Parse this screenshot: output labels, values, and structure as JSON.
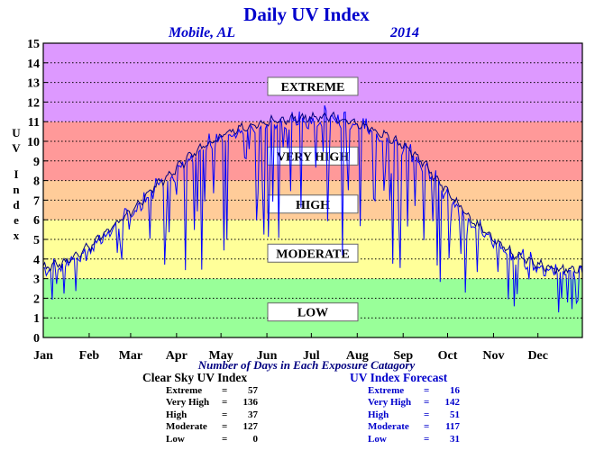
{
  "chart_data": {
    "type": "line",
    "title": "Daily UV Index",
    "location": "Mobile, AL",
    "year": "2014",
    "ylabel": "UV Index",
    "xlabel": "Number of Days in Each Exposure Catagory",
    "ylim": [
      0,
      15
    ],
    "yticks": [
      0,
      1,
      2,
      3,
      4,
      5,
      6,
      7,
      8,
      9,
      10,
      11,
      12,
      13,
      14,
      15
    ],
    "xlim": [
      1,
      365
    ],
    "x_ticks": [
      {
        "label": "Jan",
        "day": 1
      },
      {
        "label": "Feb",
        "day": 32
      },
      {
        "label": "Mar",
        "day": 60
      },
      {
        "label": "Apr",
        "day": 91
      },
      {
        "label": "May",
        "day": 121
      },
      {
        "label": "Jun",
        "day": 152
      },
      {
        "label": "Jul",
        "day": 182
      },
      {
        "label": "Aug",
        "day": 213
      },
      {
        "label": "Sep",
        "day": 244
      },
      {
        "label": "Oct",
        "day": 274
      },
      {
        "label": "Nov",
        "day": 305
      },
      {
        "label": "Dec",
        "day": 335
      }
    ],
    "grid": true,
    "bands": [
      {
        "label": "LOW",
        "from": 0,
        "to": 3,
        "color": "#99ff99",
        "label_y": 1.3
      },
      {
        "label": "MODERATE",
        "from": 3,
        "to": 6,
        "color": "#ffff99",
        "label_y": 4.3
      },
      {
        "label": "HIGH",
        "from": 6,
        "to": 8,
        "color": "#ffcc99",
        "label_y": 6.8
      },
      {
        "label": "VERY HIGH",
        "from": 8,
        "to": 11,
        "color": "#ff9999",
        "label_y": 9.25
      },
      {
        "label": "EXTREME",
        "from": 11,
        "to": 15,
        "color": "#dd99ff",
        "label_y": 12.8
      }
    ],
    "series": [
      {
        "name": "Clear Sky UV Index",
        "color": "#000080",
        "x": [
          1,
          15,
          32,
          45,
          60,
          75,
          91,
          106,
          121,
          136,
          152,
          167,
          182,
          197,
          213,
          228,
          244,
          259,
          274,
          289,
          305,
          320,
          335,
          350,
          365
        ],
        "values": [
          3.5,
          3.8,
          4.6,
          5.5,
          6.4,
          7.6,
          8.6,
          9.6,
          10.3,
          10.7,
          11.0,
          11.1,
          11.2,
          11.2,
          10.9,
          10.5,
          9.8,
          8.8,
          7.4,
          6.1,
          5.0,
          4.2,
          3.7,
          3.5,
          3.5
        ]
      },
      {
        "name": "UV Index Forecast",
        "color": "#0000ff"
      }
    ],
    "stats": {
      "title": "Number of Days in Each Exposure Catagory",
      "clear_sky": {
        "title": "Clear Sky UV Index",
        "rows": [
          {
            "label": "Extreme",
            "value": "57"
          },
          {
            "label": "Very High",
            "value": "136"
          },
          {
            "label": "High",
            "value": "37"
          },
          {
            "label": "Moderate",
            "value": "127"
          },
          {
            "label": "Low",
            "value": "0"
          }
        ]
      },
      "forecast": {
        "title": "UV Index Forecast",
        "rows": [
          {
            "label": "Extreme",
            "value": "16"
          },
          {
            "label": "Very High",
            "value": "142"
          },
          {
            "label": "High",
            "value": "51"
          },
          {
            "label": "Moderate",
            "value": "117"
          },
          {
            "label": "Low",
            "value": "31"
          }
        ]
      }
    }
  },
  "colors": {
    "title": "#0000cc",
    "frame": "#000000",
    "clear_sky_line": "#000080",
    "forecast_line": "#0000ff"
  }
}
